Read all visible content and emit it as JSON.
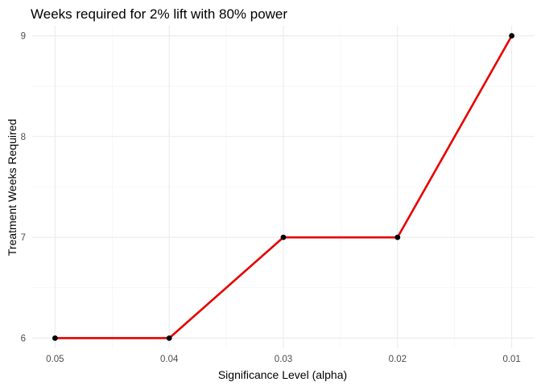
{
  "chart_data": {
    "type": "line",
    "title": "Weeks required for 2% lift with 80% power",
    "xlabel": "Significance Level (alpha)",
    "ylabel": "Treatment Weeks Required",
    "categories": [
      "0.05",
      "0.04",
      "0.03",
      "0.02",
      "0.01"
    ],
    "series": [
      {
        "values": [
          6,
          6,
          7,
          7,
          9
        ]
      }
    ],
    "y_ticks": [
      "6",
      "7",
      "8",
      "9"
    ],
    "ylim": [
      5.9,
      9.1
    ],
    "grid": true,
    "legend": "none",
    "line_color": "#e60000",
    "point_color": "#000000"
  }
}
